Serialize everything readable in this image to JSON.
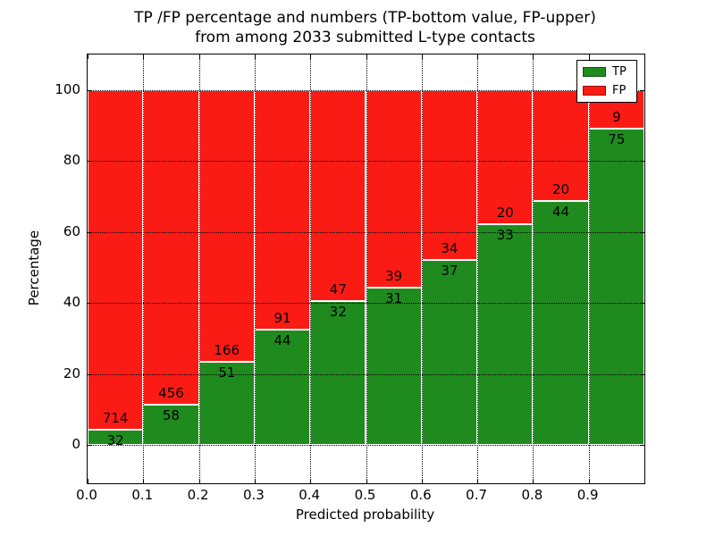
{
  "title": {
    "line1": "TP /FP percentage and numbers (TP-bottom value, FP-upper)",
    "line2": "from among 2033 submitted L-type contacts"
  },
  "legend": {
    "position": "upper right",
    "items": [
      {
        "label": "TP",
        "color": "#1f8b1f"
      },
      {
        "label": "FP",
        "color": "#fb1b15"
      }
    ]
  },
  "colors": {
    "tp_green": "#1f8b1f",
    "fp_red": "#fb1b15",
    "bar_edge": "#ffffff",
    "grid": "#000000",
    "text": "#000000",
    "background": "#ffffff"
  },
  "chart_data": {
    "type": "bar",
    "stacked": true,
    "normalized_to_percent": true,
    "title": "TP /FP percentage and numbers (TP-bottom value, FP-upper) from among 2033 submitted L-type contacts",
    "xlabel": "Predicted probability",
    "ylabel": "Percentage",
    "x_tick_labels": [
      "0.0",
      "0.1",
      "0.2",
      "0.3",
      "0.4",
      "0.5",
      "0.6",
      "0.7",
      "0.8",
      "0.9"
    ],
    "y_tick_values": [
      0,
      20,
      40,
      60,
      80,
      100
    ],
    "xlim": [
      0.0,
      1.0
    ],
    "ylim": [
      -11,
      110
    ],
    "bin_width": 0.1,
    "grid": true,
    "categories": [
      "0.0-0.1",
      "0.1-0.2",
      "0.2-0.3",
      "0.3-0.4",
      "0.4-0.5",
      "0.5-0.6",
      "0.6-0.7",
      "0.7-0.8",
      "0.8-0.9",
      "0.9-1.0"
    ],
    "series": [
      {
        "name": "TP",
        "color": "#1f8b1f",
        "values": [
          32,
          58,
          51,
          44,
          32,
          31,
          37,
          33,
          44,
          75
        ]
      },
      {
        "name": "FP",
        "color": "#fb1b15",
        "values": [
          714,
          456,
          166,
          91,
          47,
          39,
          34,
          20,
          20,
          9
        ]
      }
    ],
    "total_contacts": 2033,
    "tp_percent_of_bin": [
      4.29,
      11.28,
      23.5,
      32.59,
      40.51,
      44.29,
      52.11,
      62.26,
      68.75,
      89.29
    ]
  }
}
